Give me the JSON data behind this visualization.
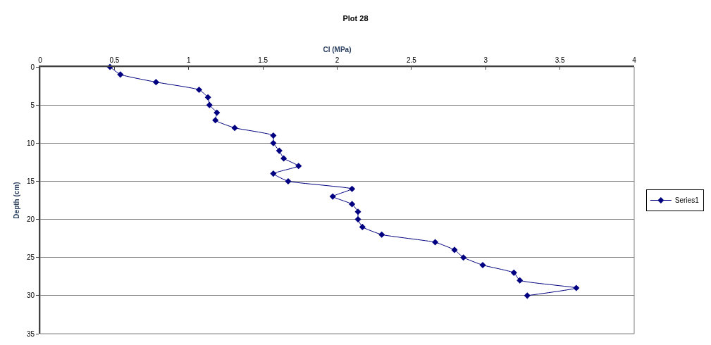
{
  "chart_data": {
    "type": "line",
    "title": "Plot 28",
    "xlabel": "CI (MPa)",
    "ylabel": "Depth (cm)",
    "xlim": [
      0,
      4
    ],
    "xticks": [
      0,
      0.5,
      1,
      1.5,
      2,
      2.5,
      3,
      3.5,
      4
    ],
    "ylim": [
      35,
      0
    ],
    "yticks": [
      0,
      5,
      10,
      15,
      20,
      25,
      30,
      35
    ],
    "grid": "y",
    "legend": "right",
    "marker": "diamond",
    "line_style": "solid",
    "series": [
      {
        "name": "Series1",
        "color": "#000080",
        "x": [
          0.47,
          0.54,
          0.78,
          1.07,
          1.13,
          1.14,
          1.19,
          1.18,
          1.31,
          1.57,
          1.57,
          1.61,
          1.64,
          1.74,
          1.57,
          1.67,
          2.1,
          1.97,
          2.1,
          2.14,
          2.14,
          2.17,
          2.3,
          2.66,
          2.79,
          2.85,
          2.98,
          3.19,
          3.23,
          3.61,
          3.28
        ],
        "values": [
          0,
          1,
          2,
          3,
          4,
          5,
          6,
          7,
          8,
          9,
          10,
          11,
          12,
          13,
          14,
          15,
          16,
          17,
          18,
          19,
          20,
          21,
          22,
          23,
          24,
          25,
          26,
          27,
          28,
          29,
          30
        ]
      }
    ]
  }
}
